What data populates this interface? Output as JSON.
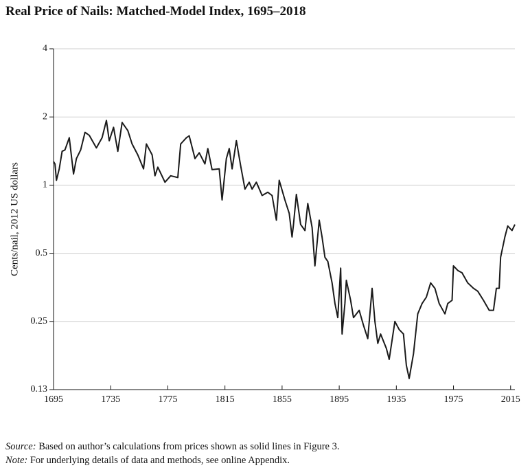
{
  "chart_data": {
    "type": "line",
    "title": "Real Price of Nails: Matched-Model Index, 1695–2018",
    "y_label": "Cents/nail, 2012 US dollars",
    "log_y": true,
    "grid": true,
    "xlim": [
      1695,
      2018
    ],
    "xticks": [
      1695,
      1735,
      1775,
      1815,
      1855,
      1895,
      1935,
      1975,
      2015
    ],
    "ylim": [
      0.125,
      4
    ],
    "yticks": [
      {
        "value": 0.125,
        "label": "0.13"
      },
      0.25,
      0.5,
      1,
      2,
      4
    ],
    "x": [
      1695,
      1696,
      1697,
      1699,
      1701,
      1703,
      1706,
      1709,
      1711,
      1714,
      1717,
      1720,
      1725,
      1729,
      1732,
      1734,
      1737,
      1740,
      1743,
      1747,
      1750,
      1754,
      1758,
      1760,
      1764,
      1766,
      1768,
      1773,
      1777,
      1782,
      1784,
      1788,
      1790,
      1794,
      1797,
      1801,
      1803,
      1806,
      1811,
      1813,
      1816,
      1818,
      1820,
      1823,
      1826,
      1829,
      1832,
      1834,
      1837,
      1841,
      1845,
      1848,
      1851,
      1853,
      1857,
      1860,
      1862,
      1863,
      1865,
      1868,
      1871,
      1873,
      1876,
      1878,
      1881,
      1883,
      1885,
      1887,
      1890,
      1892,
      1894,
      1896,
      1897,
      1899,
      1900,
      1903,
      1905,
      1909,
      1912,
      1915,
      1918,
      1920,
      1922,
      1924,
      1928,
      1930,
      1934,
      1937,
      1940,
      1942,
      1944,
      1947,
      1950,
      1953,
      1956,
      1959,
      1962,
      1965,
      1969,
      1971,
      1974,
      1975,
      1978,
      1981,
      1985,
      1989,
      1992,
      1996,
      2000,
      2003,
      2005,
      2007,
      2008,
      2011,
      2013,
      2016,
      2018
    ],
    "series": [
      {
        "name": "Matched-model index",
        "color": "#1a1a1a",
        "values": [
          1.27,
          1.24,
          1.05,
          1.18,
          1.41,
          1.43,
          1.62,
          1.12,
          1.31,
          1.43,
          1.71,
          1.66,
          1.46,
          1.62,
          1.93,
          1.57,
          1.8,
          1.41,
          1.89,
          1.74,
          1.52,
          1.36,
          1.18,
          1.52,
          1.36,
          1.1,
          1.2,
          1.03,
          1.1,
          1.08,
          1.52,
          1.62,
          1.65,
          1.31,
          1.39,
          1.24,
          1.45,
          1.17,
          1.18,
          0.86,
          1.31,
          1.45,
          1.18,
          1.57,
          1.22,
          0.96,
          1.03,
          0.96,
          1.03,
          0.9,
          0.93,
          0.9,
          0.7,
          1.05,
          0.86,
          0.75,
          0.59,
          0.67,
          0.91,
          0.67,
          0.63,
          0.83,
          0.65,
          0.44,
          0.7,
          0.59,
          0.48,
          0.46,
          0.37,
          0.3,
          0.26,
          0.43,
          0.22,
          0.3,
          0.38,
          0.31,
          0.26,
          0.28,
          0.24,
          0.21,
          0.35,
          0.25,
          0.2,
          0.22,
          0.19,
          0.17,
          0.25,
          0.23,
          0.22,
          0.16,
          0.14,
          0.18,
          0.27,
          0.3,
          0.32,
          0.37,
          0.35,
          0.3,
          0.27,
          0.3,
          0.31,
          0.44,
          0.42,
          0.41,
          0.37,
          0.35,
          0.34,
          0.31,
          0.28,
          0.28,
          0.35,
          0.35,
          0.48,
          0.59,
          0.66,
          0.63,
          0.67
        ]
      }
    ],
    "notes": [
      {
        "label": "Source:",
        "text": "Based on author’s calculations from prices shown as solid lines in Figure 3."
      },
      {
        "label": "Note:",
        "text": "For underlying details of data and methods, see online Appendix."
      }
    ]
  }
}
